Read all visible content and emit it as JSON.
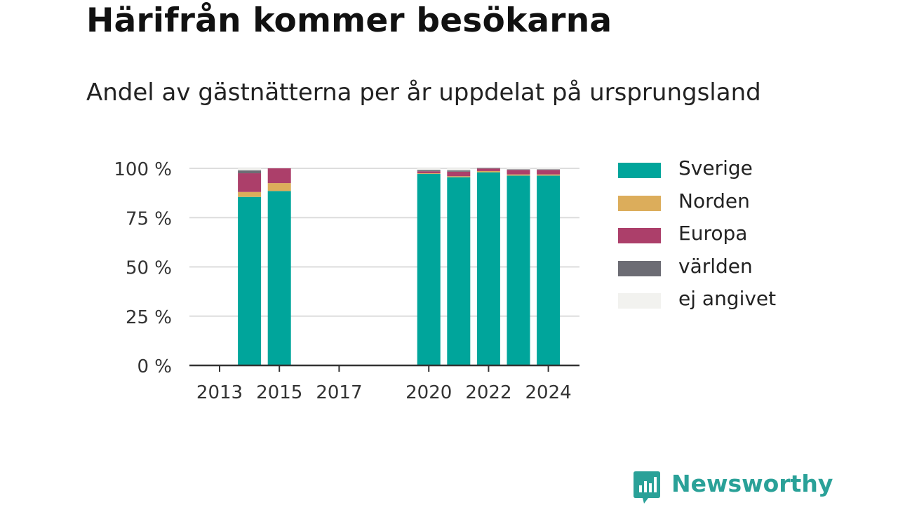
{
  "header": {
    "title": "Härifrån kommer besökarna",
    "subtitle": "Andel av gästnätterna per år uppdelat på ursprungsland"
  },
  "branding": {
    "name": "Newsworthy",
    "color": "#2aa198"
  },
  "chart_data": {
    "type": "bar",
    "stacked": true,
    "categories": [
      "2013",
      "2014",
      "2015",
      "2016",
      "2017",
      "2018",
      "2019",
      "2020",
      "2021",
      "2022",
      "2023",
      "2024"
    ],
    "x_tick_labels": [
      "2013",
      "2015",
      "2017",
      "2020",
      "2022",
      "2024"
    ],
    "y_tick_labels": [
      "0 %",
      "25 %",
      "50 %",
      "75 %",
      "100 %"
    ],
    "ylim": [
      0,
      100
    ],
    "grid": true,
    "legend_position": "right",
    "series": [
      {
        "name": "Sverige",
        "color": "#00a59b",
        "values": [
          null,
          85.5,
          88.5,
          null,
          null,
          null,
          null,
          97.2,
          95.5,
          98.0,
          96.3,
          96.3
        ]
      },
      {
        "name": "Norden",
        "color": "#dcad5b",
        "values": [
          null,
          2.5,
          4.0,
          null,
          null,
          null,
          null,
          0.3,
          0.5,
          0.6,
          0.6,
          0.6
        ]
      },
      {
        "name": "Europa",
        "color": "#ac3f6a",
        "values": [
          null,
          9.5,
          7.5,
          null,
          null,
          null,
          null,
          1.0,
          2.3,
          1.3,
          2.3,
          2.3
        ]
      },
      {
        "name": "världen",
        "color": "#6c6c74",
        "values": [
          null,
          1.5,
          0.0,
          null,
          null,
          null,
          null,
          0.7,
          0.7,
          0.3,
          0.3,
          0.3
        ]
      },
      {
        "name": "ej angivet",
        "color": "#f2f2ef",
        "values": [
          null,
          1.0,
          0.0,
          null,
          null,
          null,
          null,
          0.8,
          1.0,
          0.0,
          0.5,
          0.5
        ]
      }
    ]
  }
}
